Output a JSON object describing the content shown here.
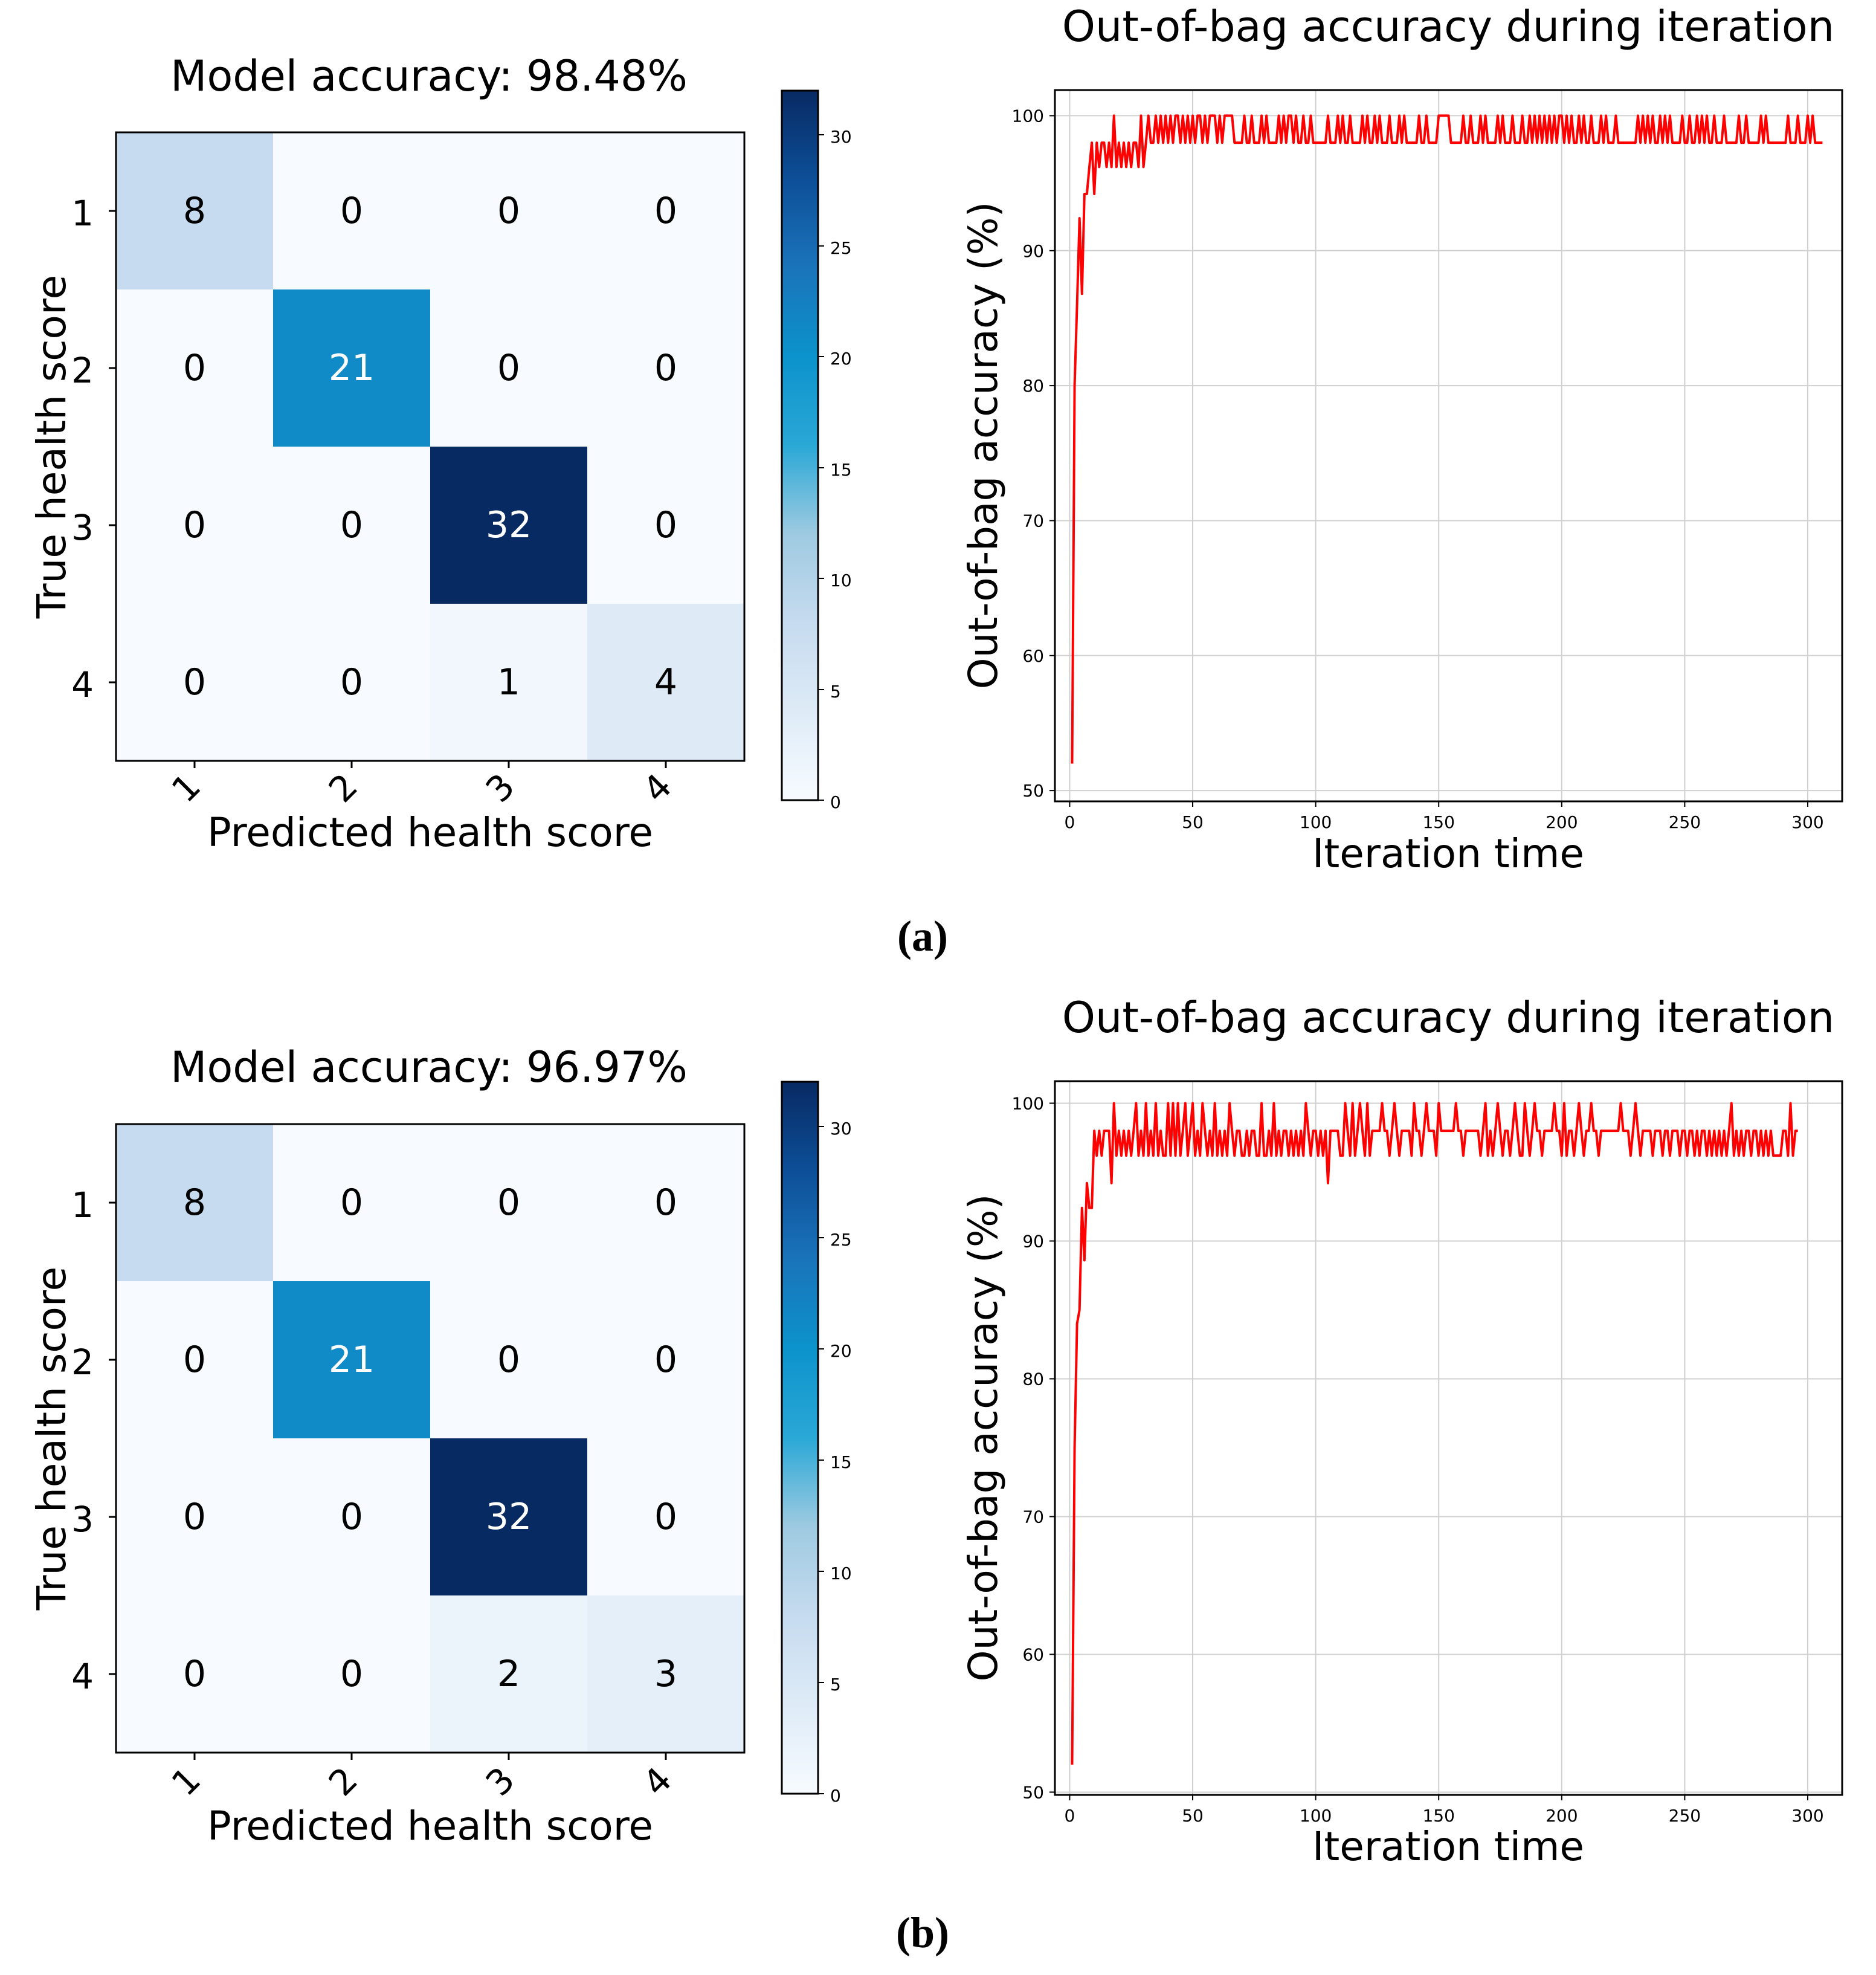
{
  "panels": [
    {
      "caption": "(a)",
      "confusion": {
        "type": "heatmap",
        "title": "Model accuracy: 98.48%",
        "xlabel": "Predicted health score",
        "ylabel": "True health score",
        "x_categories": [
          "1",
          "2",
          "3",
          "4"
        ],
        "y_categories": [
          "1",
          "2",
          "3",
          "4"
        ],
        "matrix": [
          [
            8,
            0,
            0,
            0
          ],
          [
            0,
            21,
            0,
            0
          ],
          [
            0,
            0,
            32,
            0
          ],
          [
            0,
            0,
            1,
            4
          ]
        ],
        "colorbar": {
          "min": 0,
          "max": 32,
          "ticks": [
            "0",
            "5",
            "10",
            "15",
            "20",
            "25",
            "30"
          ],
          "colormap": "Blues"
        }
      },
      "oob": {
        "type": "line",
        "title": "Out-of-bag accuracy during iteration",
        "xlabel": "Iteration time",
        "ylabel": "Out-of-bag accuracy (%)",
        "xlim": [
          -6,
          314
        ],
        "ylim": [
          49.2,
          101.9
        ],
        "xticks": [
          "0",
          "50",
          "100",
          "150",
          "200",
          "250",
          "300"
        ],
        "yticks": [
          "50",
          "60",
          "70",
          "80",
          "90",
          "100"
        ],
        "grid": true,
        "color": "#ff0000",
        "series": [
          {
            "name": "OOB accuracy",
            "x_start": 1,
            "values": [
              52,
              80,
              86,
              92.4,
              86.8,
              94.2,
              94.2,
              96.2,
              98,
              94.2,
              98,
              96.2,
              98,
              98,
              96.2,
              98,
              96.2,
              100,
              96.2,
              98,
              96.2,
              98,
              96.2,
              98,
              96.2,
              98,
              98,
              96.2,
              100,
              96.2,
              98,
              100,
              98,
              98,
              100,
              98,
              100,
              98,
              100,
              98,
              100,
              98,
              100,
              100,
              98,
              100,
              98,
              100,
              98,
              100,
              98,
              100,
              100,
              98,
              100,
              98,
              100,
              100,
              100,
              98,
              100,
              98,
              100,
              100,
              100,
              100,
              98,
              98,
              98,
              98,
              100,
              98,
              98,
              100,
              98,
              98,
              98,
              100,
              98,
              100,
              98,
              98,
              98,
              98,
              100,
              98,
              100,
              98,
              100,
              100,
              98,
              100,
              98,
              98,
              100,
              98,
              98,
              100,
              98,
              98,
              98,
              98,
              98,
              98,
              100,
              98,
              98,
              98,
              100,
              98,
              100,
              98,
              98,
              100,
              98,
              98,
              98,
              98,
              100,
              98,
              100,
              98,
              98,
              100,
              98,
              100,
              98,
              98,
              98,
              100,
              98,
              98,
              98,
              100,
              98,
              100,
              98,
              98,
              98,
              98,
              98,
              100,
              98,
              98,
              100,
              98,
              98,
              98,
              98,
              100,
              100,
              100,
              100,
              100,
              98,
              98,
              98,
              98,
              98,
              100,
              98,
              98,
              100,
              98,
              98,
              98,
              100,
              98,
              100,
              98,
              98,
              98,
              98,
              100,
              98,
              100,
              98,
              98,
              98,
              100,
              98,
              98,
              98,
              100,
              98,
              98,
              100,
              98,
              100,
              98,
              100,
              98,
              100,
              98,
              100,
              98,
              100,
              98,
              100,
              100,
              98,
              100,
              98,
              100,
              98,
              98,
              100,
              98,
              100,
              98,
              98,
              100,
              98,
              98,
              98,
              100,
              98,
              100,
              98,
              98,
              98,
              100,
              98,
              98,
              98,
              98,
              98,
              98,
              98,
              98,
              100,
              98,
              100,
              98,
              100,
              98,
              100,
              98,
              98,
              100,
              98,
              100,
              98,
              100,
              98,
              98,
              98,
              98,
              100,
              98,
              98,
              100,
              98,
              98,
              100,
              98,
              100,
              98,
              100,
              98,
              98,
              100,
              98,
              98,
              98,
              100,
              98,
              98,
              98,
              98,
              98,
              100,
              98,
              98,
              100,
              98,
              98,
              98,
              98,
              98,
              100,
              98,
              100,
              98,
              98,
              98,
              98,
              98,
              98,
              98,
              98,
              100,
              98,
              98,
              98,
              100,
              98,
              98,
              98,
              100,
              98,
              100,
              98,
              98,
              98,
              98
            ]
          }
        ]
      }
    },
    {
      "caption": "(b)",
      "confusion": {
        "type": "heatmap",
        "title": "Model accuracy: 96.97%",
        "xlabel": "Predicted health score",
        "ylabel": "True health score",
        "x_categories": [
          "1",
          "2",
          "3",
          "4"
        ],
        "y_categories": [
          "1",
          "2",
          "3",
          "4"
        ],
        "matrix": [
          [
            8,
            0,
            0,
            0
          ],
          [
            0,
            21,
            0,
            0
          ],
          [
            0,
            0,
            32,
            0
          ],
          [
            0,
            0,
            2,
            3
          ]
        ],
        "colorbar": {
          "min": 0,
          "max": 32,
          "ticks": [
            "0",
            "5",
            "10",
            "15",
            "20",
            "25",
            "30"
          ],
          "colormap": "Blues"
        }
      },
      "oob": {
        "type": "line",
        "title": "Out-of-bag accuracy during iteration",
        "xlabel": "Iteration time",
        "ylabel": "Out-of-bag accuracy (%)",
        "xlim": [
          -6,
          314
        ],
        "ylim": [
          49.8,
          101.6
        ],
        "xticks": [
          "0",
          "50",
          "100",
          "150",
          "200",
          "250",
          "300"
        ],
        "yticks": [
          "50",
          "60",
          "70",
          "80",
          "90",
          "100"
        ],
        "grid": true,
        "color": "#ff0000",
        "series": [
          {
            "name": "OOB accuracy",
            "x_start": 1,
            "values": [
              52,
              75,
              84,
              85,
              92.4,
              88.6,
              94.2,
              92.4,
              92.4,
              98,
              96.2,
              98,
              96.2,
              98,
              98,
              98,
              94.2,
              100,
              96.2,
              98,
              96.2,
              98,
              96.2,
              98,
              96.2,
              98,
              100,
              96.2,
              98,
              96.2,
              100,
              96.2,
              98,
              96.2,
              100,
              96.2,
              98,
              96.2,
              96.2,
              100,
              96.2,
              100,
              96.2,
              100,
              96.2,
              98,
              100,
              96.2,
              98,
              100,
              96.2,
              98,
              96.2,
              100,
              98,
              96.2,
              98,
              96.2,
              100,
              96.2,
              98,
              96.2,
              98,
              96.2,
              100,
              98,
              96.2,
              98,
              98,
              96.2,
              96.2,
              98,
              96.2,
              98,
              98,
              96.2,
              96.2,
              100,
              96.2,
              96.2,
              98,
              96.2,
              100,
              96.2,
              98,
              96.2,
              98,
              98,
              96.2,
              98,
              96.2,
              98,
              96.2,
              98,
              96.2,
              100,
              98,
              96.2,
              98,
              98,
              96.2,
              98,
              96.2,
              98,
              94.2,
              98,
              98,
              98,
              98,
              96.2,
              96.2,
              100,
              98,
              96.2,
              100,
              96.2,
              98,
              100,
              98,
              96.2,
              100,
              96.2,
              98,
              98,
              98,
              98,
              100,
              98,
              98,
              96.2,
              98,
              100,
              98,
              96.2,
              98,
              98,
              98,
              98,
              96.2,
              100,
              98,
              98,
              96.2,
              98,
              100,
              98,
              98,
              98,
              96.2,
              100,
              98,
              98,
              98,
              98,
              98,
              98,
              100,
              98,
              98,
              96.2,
              98,
              98,
              98,
              98,
              98,
              98,
              96.2,
              98,
              100,
              96.2,
              98,
              96.2,
              98,
              100,
              98,
              96.2,
              98,
              98,
              96.2,
              98,
              100,
              98,
              96.2,
              96.2,
              100,
              98,
              96.2,
              98,
              100,
              98,
              98,
              96.2,
              98,
              98,
              98,
              98,
              100,
              98,
              98,
              96.2,
              100,
              96.2,
              98,
              98,
              96.2,
              98,
              100,
              98,
              96.2,
              98,
              98,
              100,
              98,
              98,
              96.2,
              98,
              98,
              98,
              98,
              98,
              98,
              98,
              98,
              100,
              98,
              98,
              98,
              96.2,
              98,
              100,
              98,
              96.2,
              98,
              98,
              98,
              98,
              96.2,
              98,
              98,
              98,
              96.2,
              98,
              98,
              96.2,
              98,
              98,
              98,
              96.2,
              98,
              98,
              96.2,
              98,
              98,
              96.2,
              98,
              96.2,
              98,
              98,
              96.2,
              98,
              96.2,
              98,
              96.2,
              98,
              96.2,
              98,
              96.2,
              98,
              100,
              96.2,
              98,
              96.2,
              98,
              96.2,
              98,
              98,
              96.2,
              98,
              98,
              96.2,
              98,
              96.2,
              98,
              96.2,
              98,
              96.2,
              96.2,
              96.2,
              96.2,
              98,
              98,
              96.2,
              100,
              96.2,
              98,
              98
            ]
          }
        ]
      }
    }
  ]
}
